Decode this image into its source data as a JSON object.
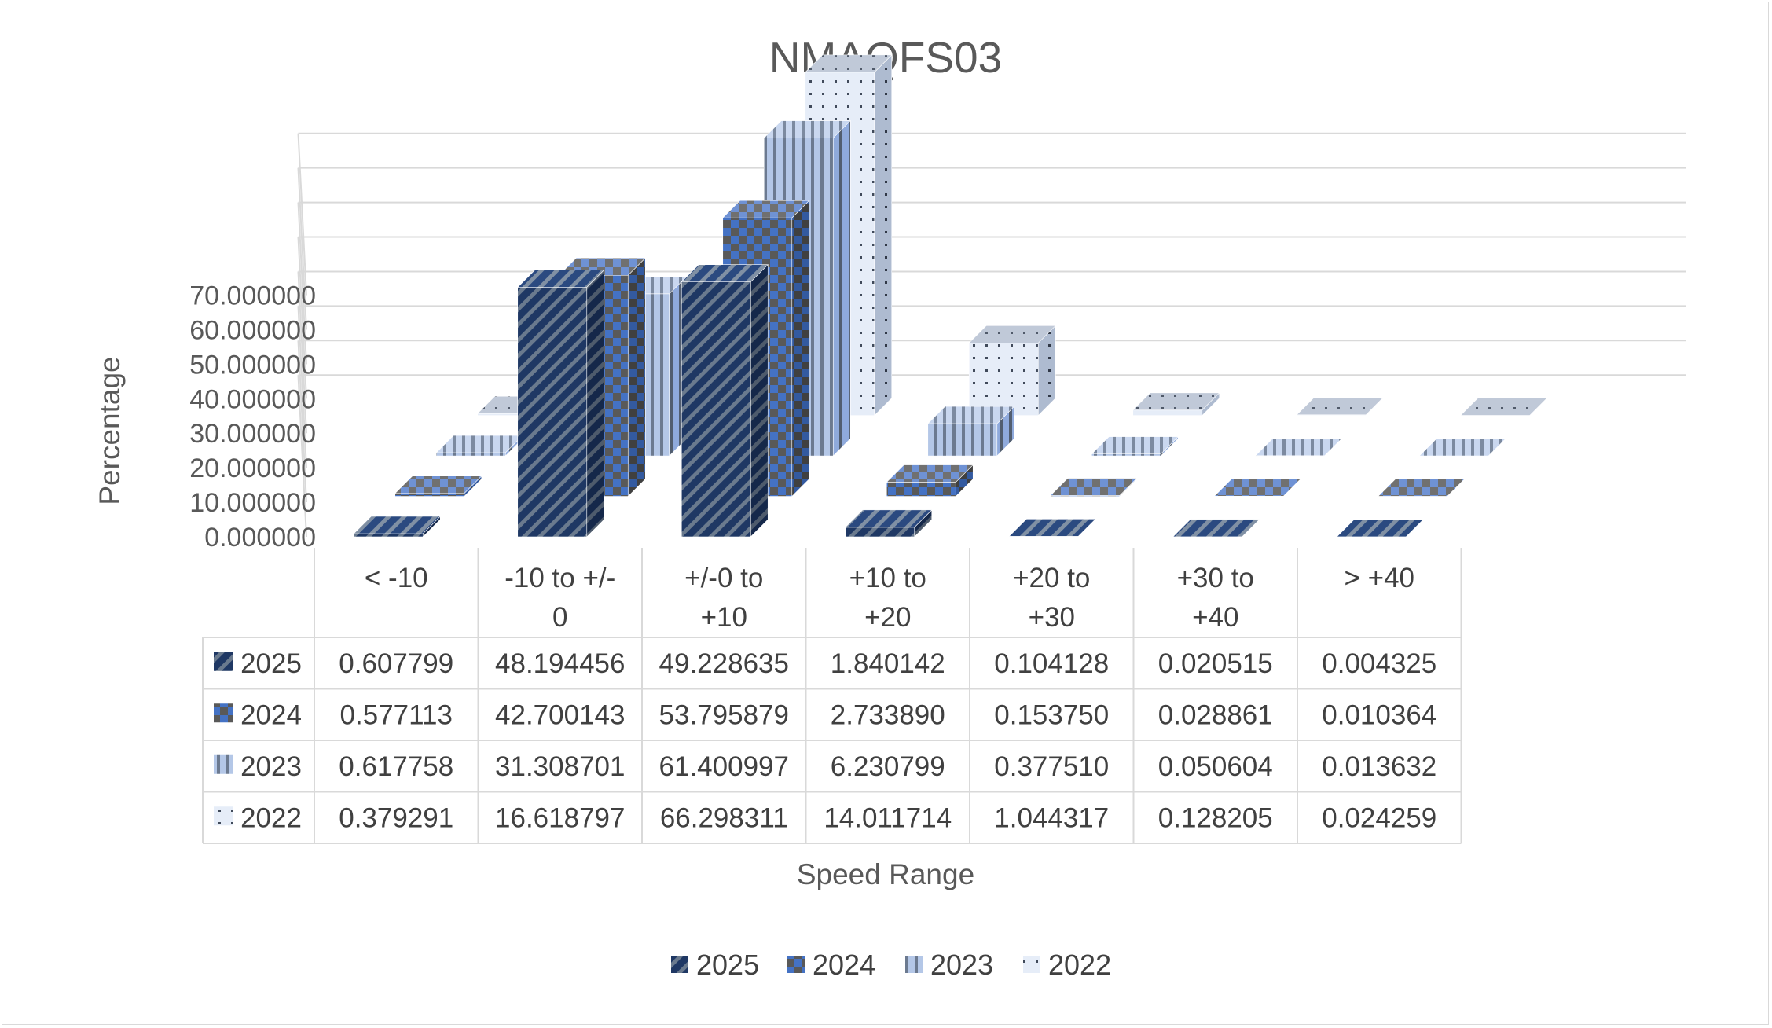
{
  "chart_data": {
    "type": "bar",
    "title": "NMAQFS03",
    "xlabel": "Speed Range",
    "ylabel": "Percentage",
    "ylim": [
      0,
      70
    ],
    "y_ticks": [
      "0.000000",
      "10.000000",
      "20.000000",
      "30.000000",
      "40.000000",
      "50.000000",
      "60.000000",
      "70.000000"
    ],
    "categories": [
      "< -10",
      "-10 to +/-0",
      "+/-0 to +10",
      "+10 to +20",
      "+20 to +30",
      "+30 to +40",
      "> +40"
    ],
    "category_lines": [
      [
        "< -10"
      ],
      [
        "-10 to +/-",
        "0"
      ],
      [
        "+/-0 to",
        "+10"
      ],
      [
        "+10 to",
        "+20"
      ],
      [
        "+20 to",
        "+30"
      ],
      [
        "+30 to",
        "+40"
      ],
      [
        "> +40"
      ]
    ],
    "series": [
      {
        "name": "2025",
        "color": "#1f3864",
        "pattern": "diagonal-stripes",
        "values": [
          0.607799,
          48.194456,
          49.228635,
          1.840142,
          0.104128,
          0.020515,
          0.004325
        ],
        "labels": [
          "0.607799",
          "48.194456",
          "49.228635",
          "1.840142",
          "0.104128",
          "0.020515",
          "0.004325"
        ]
      },
      {
        "name": "2024",
        "color": "#4472c4",
        "pattern": "checkerboard",
        "values": [
          0.577113,
          42.700143,
          53.795879,
          2.73389,
          0.15375,
          0.028861,
          0.010364
        ],
        "labels": [
          "0.577113",
          "42.700143",
          "53.795879",
          "2.733890",
          "0.153750",
          "0.028861",
          "0.010364"
        ]
      },
      {
        "name": "2023",
        "color": "#8faadc",
        "pattern": "vertical-stripes",
        "values": [
          0.617758,
          31.308701,
          61.400997,
          6.230799,
          0.37751,
          0.050604,
          0.013632
        ],
        "labels": [
          "0.617758",
          "31.308701",
          "61.400997",
          "6.230799",
          "0.377510",
          "0.050604",
          "0.013632"
        ]
      },
      {
        "name": "2022",
        "color": "#dae3f3",
        "pattern": "dots",
        "values": [
          0.379291,
          16.618797,
          66.298311,
          14.011714,
          1.044317,
          0.128205,
          0.024259
        ],
        "labels": [
          "0.379291",
          "16.618797",
          "66.298311",
          "14.011714",
          "1.044317",
          "0.128205",
          "0.024259"
        ]
      }
    ],
    "chart_style": "3d-column",
    "data_table": true,
    "grid": true,
    "legend": "bottom"
  }
}
